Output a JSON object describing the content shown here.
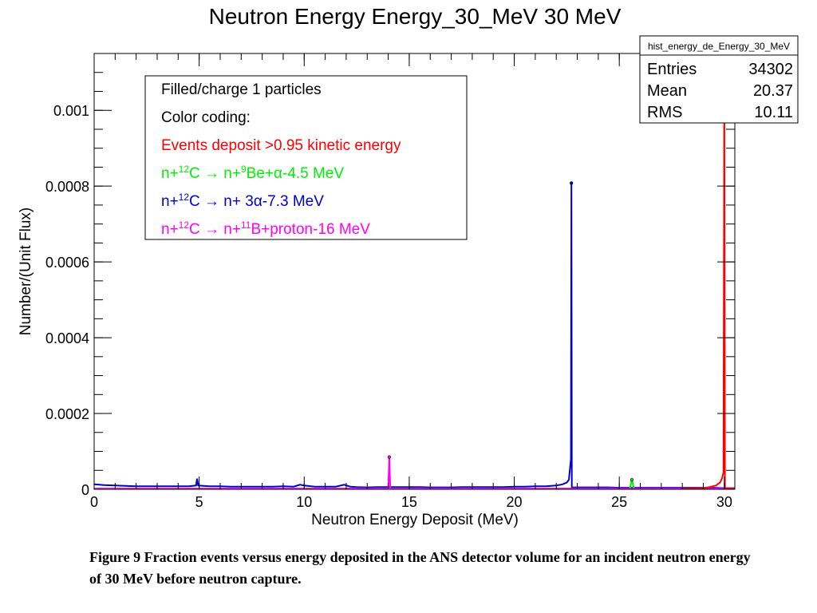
{
  "chart_data": {
    "type": "histogram",
    "title": "Neutron Energy Energy_30_MeV 30 MeV",
    "xlabel": "Neutron Energy Deposit (MeV)",
    "ylabel": "Number/(Unit Flux)",
    "xlim": [
      0,
      30.5
    ],
    "ylim": [
      0,
      0.00115
    ],
    "xticks": [
      0,
      5,
      10,
      15,
      20,
      25,
      30
    ],
    "xtick_labels": [
      "0",
      "5",
      "10",
      "15",
      "20",
      "25",
      "30"
    ],
    "yticks": [
      0,
      0.0002,
      0.0004,
      0.0006,
      0.0008,
      0.001
    ],
    "ytick_labels": [
      "0",
      "0.0002",
      "0.0004",
      "0.0006",
      "0.0008",
      "0.001"
    ],
    "grid": false,
    "stats_box": {
      "name": "hist_energy_de_Energy_30_MeV",
      "rows": [
        {
          "label": "Entries",
          "value": "34302"
        },
        {
          "label": "Mean",
          "value": "20.37"
        },
        {
          "label": "RMS",
          "value": "10.11"
        }
      ]
    },
    "legend": {
      "title": "Filled/charge 1 particles",
      "subtitle": "Color coding:",
      "entries": [
        {
          "parts": [
            [
              "Events deposit >0.95 kinetic energy",
              ""
            ]
          ],
          "color": "#ff0000"
        },
        {
          "parts": [
            [
              "n+",
              ""
            ],
            [
              "12",
              "sup"
            ],
            [
              "C → n+",
              ""
            ],
            [
              "9",
              "sup"
            ],
            [
              "Be+α-4.5 MeV",
              ""
            ]
          ],
          "color": "#00ee00"
        },
        {
          "parts": [
            [
              "n+",
              ""
            ],
            [
              "12",
              "sup"
            ],
            [
              "C → n+ 3α-7.3 MeV",
              ""
            ]
          ],
          "color": "#0000cc"
        },
        {
          "parts": [
            [
              "n+",
              ""
            ],
            [
              "12",
              "sup"
            ],
            [
              "C → n+",
              ""
            ],
            [
              "11",
              "sup"
            ],
            [
              "B+proton-16 MeV",
              ""
            ]
          ],
          "color": "#ff00ff"
        }
      ]
    },
    "series": [
      {
        "color": "#0000cc",
        "points": [
          [
            0,
            1.3e-05
          ],
          [
            0.5,
            1.1e-05
          ],
          [
            1,
            1e-05
          ],
          [
            1.5,
            9e-06
          ],
          [
            2,
            8e-06
          ],
          [
            2.5,
            8e-06
          ],
          [
            3,
            8e-06
          ],
          [
            3.5,
            8e-06
          ],
          [
            4,
            8e-06
          ],
          [
            4.5,
            8e-06
          ],
          [
            4.85,
            1e-05
          ],
          [
            4.9,
            2.8e-05
          ],
          [
            4.95,
            1e-05
          ],
          [
            5.5,
            8e-06
          ],
          [
            6,
            8e-06
          ],
          [
            6.5,
            7e-06
          ],
          [
            7,
            7e-06
          ],
          [
            7.5,
            7e-06
          ],
          [
            8,
            7e-06
          ],
          [
            8.5,
            7e-06
          ],
          [
            9,
            8e-06
          ],
          [
            9.5,
            7e-06
          ],
          [
            9.8,
            1.2e-05
          ],
          [
            10,
            1e-05
          ],
          [
            10.5,
            7e-06
          ],
          [
            11,
            7e-06
          ],
          [
            11.5,
            7e-06
          ],
          [
            11.9,
            1.2e-05
          ],
          [
            12.2,
            7e-06
          ],
          [
            12.5,
            6e-06
          ],
          [
            13,
            5e-06
          ],
          [
            13.5,
            6e-06
          ],
          [
            14,
            6e-06
          ],
          [
            14.5,
            6e-06
          ],
          [
            15,
            6e-06
          ],
          [
            15.5,
            6e-06
          ],
          [
            16,
            5e-06
          ],
          [
            16.5,
            5e-06
          ],
          [
            17,
            5e-06
          ],
          [
            17.5,
            6e-06
          ],
          [
            18,
            6e-06
          ],
          [
            18.5,
            6e-06
          ],
          [
            19,
            6e-06
          ],
          [
            19.5,
            6e-06
          ],
          [
            20,
            7e-06
          ],
          [
            20.5,
            7e-06
          ],
          [
            21,
            8e-06
          ],
          [
            21.5,
            8e-06
          ],
          [
            22,
            1e-05
          ],
          [
            22.3,
            1.3e-05
          ],
          [
            22.5,
            1.8e-05
          ],
          [
            22.6,
            2.5e-05
          ],
          [
            22.7,
            8e-05
          ],
          [
            22.72,
            0.000808
          ],
          [
            22.74,
            5e-06
          ],
          [
            23,
            5e-06
          ],
          [
            23.5,
            5e-06
          ],
          [
            24,
            5e-06
          ],
          [
            24.5,
            5e-06
          ],
          [
            25,
            4e-06
          ],
          [
            25.5,
            4e-06
          ],
          [
            26,
            4e-06
          ],
          [
            26.5,
            4e-06
          ],
          [
            27,
            4e-06
          ],
          [
            27.5,
            4e-06
          ],
          [
            28,
            4e-06
          ],
          [
            28.5,
            4e-06
          ],
          [
            29,
            4e-06
          ],
          [
            29.5,
            4e-06
          ],
          [
            30,
            3e-06
          ],
          [
            30.5,
            3e-06
          ]
        ]
      },
      {
        "color": "#ff00ff",
        "points": [
          [
            0,
            2e-06
          ],
          [
            13.5,
            2e-06
          ],
          [
            14.0,
            2e-06
          ],
          [
            14.05,
            8.5e-05
          ],
          [
            14.1,
            2e-06
          ],
          [
            20,
            2e-06
          ],
          [
            30.5,
            2e-06
          ]
        ]
      },
      {
        "color": "#00ee00",
        "points": [
          [
            25.5,
            3e-06
          ],
          [
            25.6,
            2.5e-05
          ],
          [
            25.7,
            3e-06
          ]
        ]
      },
      {
        "color": "#ff0000",
        "points": [
          [
            28,
            2e-06
          ],
          [
            28.5,
            2e-06
          ],
          [
            29,
            3e-06
          ],
          [
            29.3,
            6e-06
          ],
          [
            29.6,
            1e-05
          ],
          [
            29.8,
            1.8e-05
          ],
          [
            29.9,
            3e-05
          ],
          [
            29.96,
            4.5e-05
          ],
          [
            30.0,
            0.001085
          ],
          [
            30.03,
            2e-06
          ],
          [
            30.5,
            2e-06
          ]
        ]
      }
    ]
  },
  "caption": "Figure 9 Fraction events versus energy deposited in the ANS detector volume for an incident neutron energy of 30 MeV before neutron capture."
}
